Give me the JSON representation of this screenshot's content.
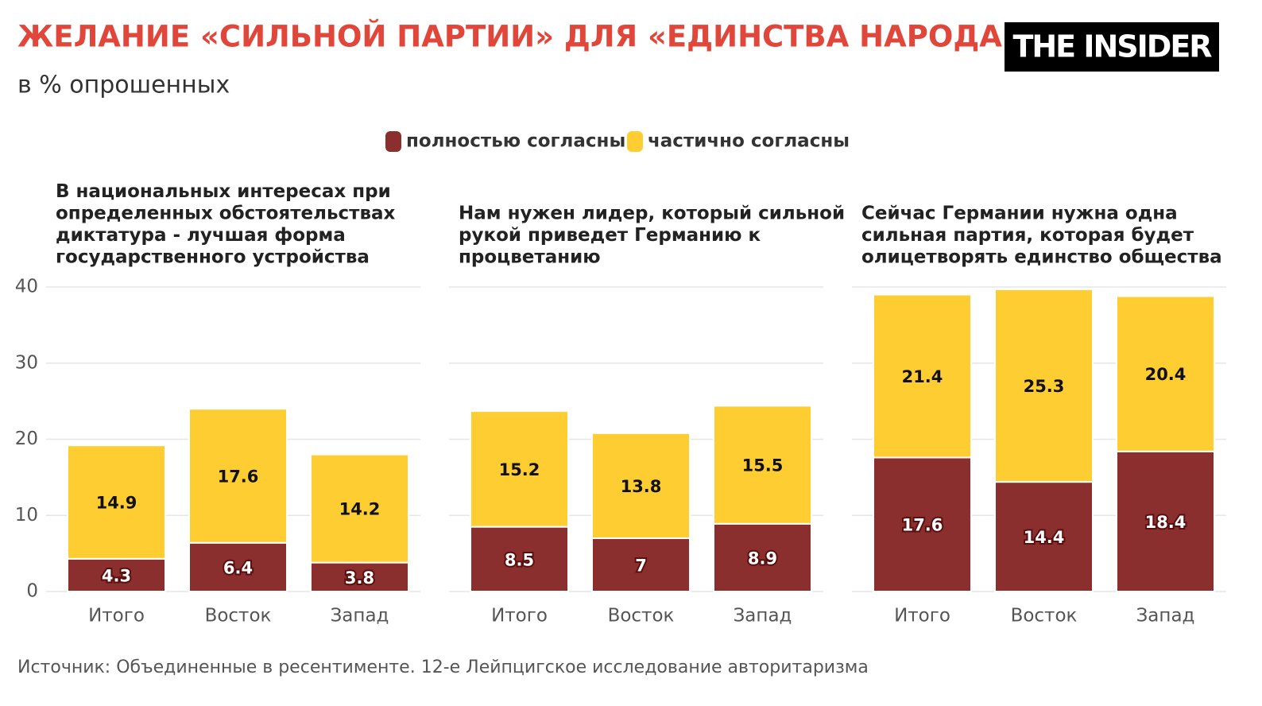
{
  "title": "ЖЕЛАНИЕ «СИЛЬНОЙ ПАРТИИ» ДЛЯ «ЕДИНСТВА НАРОДА»",
  "subtitle": "в % опрошенных",
  "logo": "THE INSIDER",
  "source": "Источник: Объединенные в ресентименте. 12-е Лейпцигское исследование авторитаризма",
  "chart_data": [
    {
      "type": "bar",
      "stacked": true,
      "y_axis_labels": true,
      "title": [
        "В национальных интересах при",
        "определенных обстоятельствах",
        "диктатура - лучшая форма",
        "государственного устройства"
      ],
      "categories": [
        "Итого",
        "Восток",
        "Запад"
      ],
      "series": [
        {
          "name": "полностью согласны",
          "color": "#8b2e2e",
          "values": [
            4.3,
            6.4,
            3.8
          ]
        },
        {
          "name": "частично согласны",
          "color": "#fdcd32",
          "values": [
            14.9,
            17.6,
            14.2
          ]
        }
      ],
      "ylim": [
        0,
        40
      ],
      "yticks": [
        0,
        10,
        20,
        30,
        40
      ],
      "grid": true
    },
    {
      "type": "bar",
      "stacked": true,
      "y_axis_labels": false,
      "title": [
        "Нам нужен лидер, который сильной",
        "рукой приведет Германию к",
        "процветанию"
      ],
      "categories": [
        "Итого",
        "Восток",
        "Запад"
      ],
      "series": [
        {
          "color": "#8b2e2e",
          "values": [
            8.5,
            7,
            8.9
          ]
        },
        {
          "color": "#fdcd32",
          "values": [
            15.2,
            13.8,
            15.5
          ]
        }
      ],
      "ylim": [
        0,
        40
      ],
      "yticks": [
        0,
        10,
        20,
        30,
        40
      ],
      "grid": true
    },
    {
      "type": "bar",
      "stacked": true,
      "y_axis_labels": false,
      "title": [
        "Сейчас Германии нужна одна",
        "сильная партия, которая будет",
        "олицетворять единство общества"
      ],
      "categories": [
        "Итого",
        "Восток",
        "Запад"
      ],
      "series": [
        {
          "color": "#8b2e2e",
          "values": [
            17.6,
            14.4,
            18.4
          ]
        },
        {
          "color": "#fdcd32",
          "values": [
            21.4,
            25.3,
            20.4
          ]
        }
      ],
      "ylim": [
        0,
        40
      ],
      "yticks": [
        0,
        10,
        20,
        30,
        40
      ],
      "grid": true
    }
  ]
}
